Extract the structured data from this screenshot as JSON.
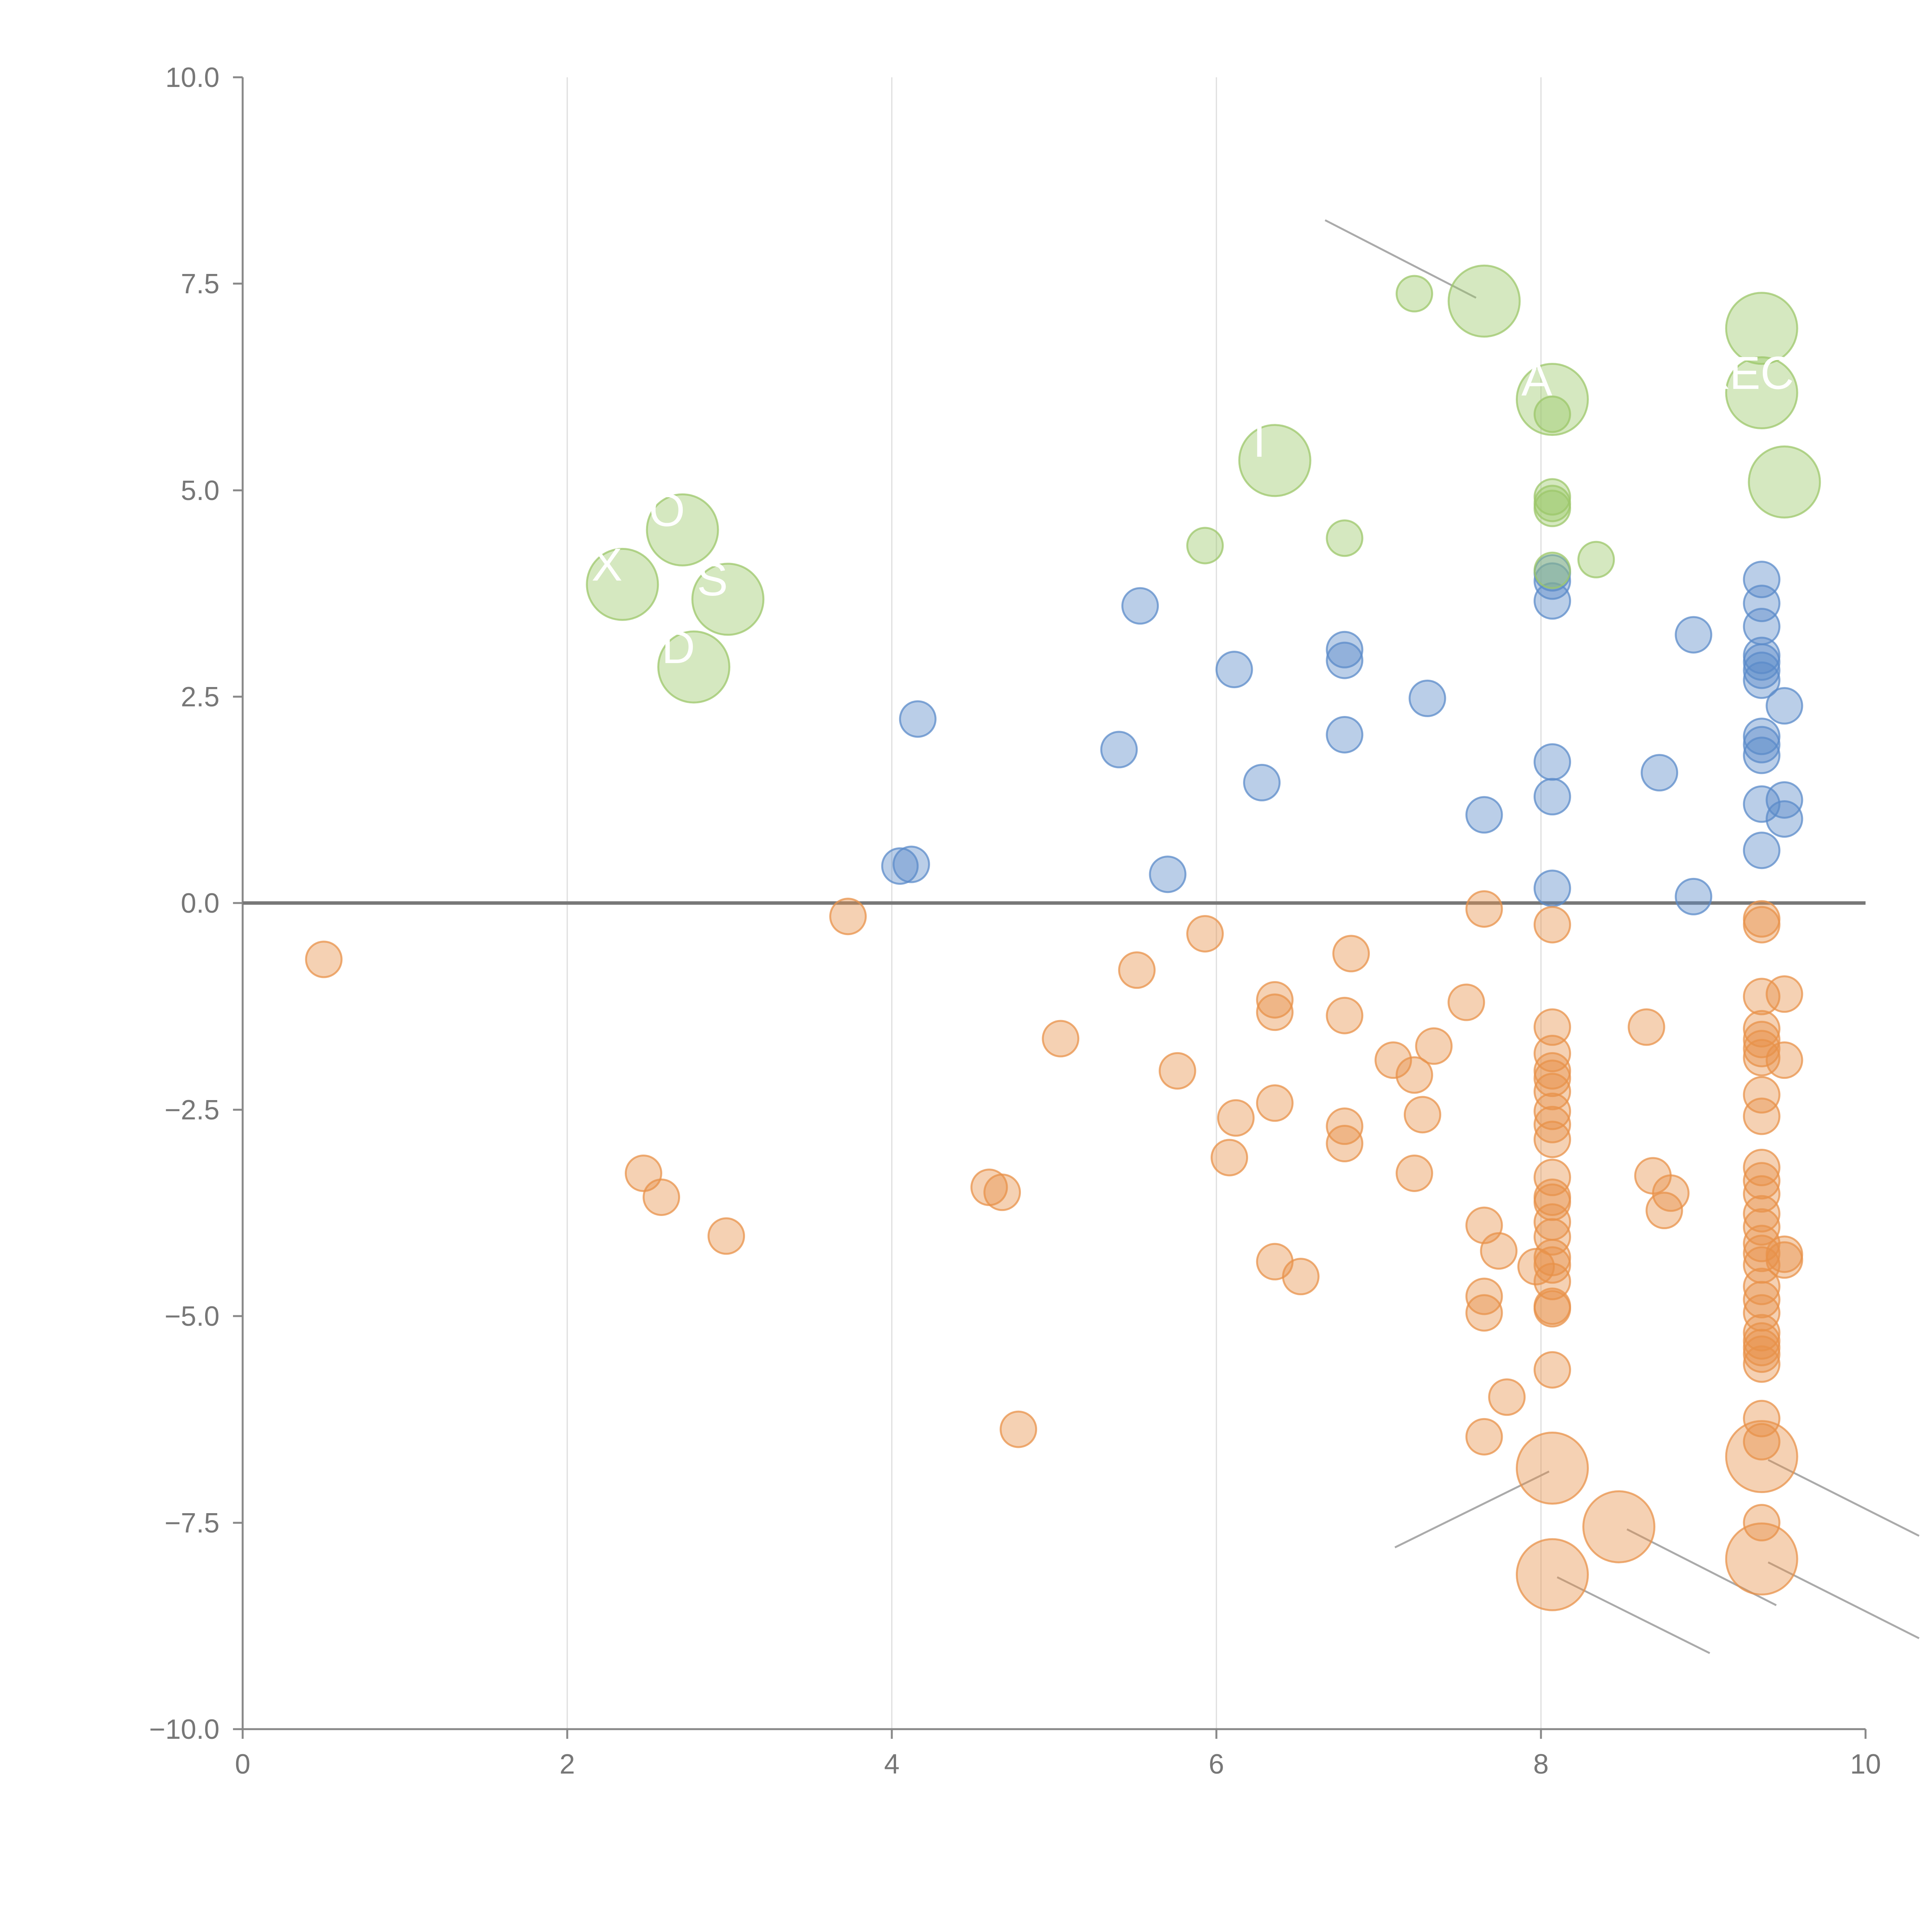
{
  "chart_data": {
    "type": "scatter",
    "title": "",
    "xlabel": "",
    "ylabel": "",
    "xlim": [
      0,
      10
    ],
    "ylim": [
      -10,
      10
    ],
    "x_ticks": [
      "0",
      "2",
      "4",
      "6",
      "8",
      "10"
    ],
    "y_ticks": [
      "10.0",
      "7.5",
      "5.0",
      "2.5",
      "0.0",
      "−2.5",
      "−5.0",
      "−7.5",
      "−10.0"
    ],
    "vertical_gridlines": true,
    "zero_line": true,
    "colors": {
      "blue": "#5b8bc9",
      "orange": "#e8914a",
      "green": "#9cc76a",
      "leader": "#aaaaaa"
    },
    "series": [
      {
        "name": "blue",
        "color": "#5b8bc9",
        "points": [
          [
            4.05,
            0.45
          ],
          [
            4.12,
            0.47
          ],
          [
            4.16,
            2.23
          ],
          [
            5.4,
            1.86
          ],
          [
            5.53,
            3.6
          ],
          [
            5.7,
            0.35
          ],
          [
            6.11,
            2.83
          ],
          [
            6.28,
            1.46
          ],
          [
            6.79,
            3.07
          ],
          [
            6.79,
            2.94
          ],
          [
            6.79,
            2.04
          ],
          [
            7.3,
            2.48
          ],
          [
            7.65,
            1.07
          ],
          [
            8.07,
            4.0
          ],
          [
            8.07,
            3.9
          ],
          [
            8.07,
            3.66
          ],
          [
            8.07,
            1.71
          ],
          [
            8.07,
            1.29
          ],
          [
            8.07,
            0.18
          ],
          [
            8.73,
            1.58
          ],
          [
            8.94,
            3.25
          ],
          [
            8.94,
            0.08
          ],
          [
            9.36,
            3.92
          ],
          [
            9.36,
            3.63
          ],
          [
            9.36,
            3.35
          ],
          [
            9.36,
            3.0
          ],
          [
            9.36,
            2.92
          ],
          [
            9.36,
            2.82
          ],
          [
            9.36,
            2.7
          ],
          [
            9.36,
            2.02
          ],
          [
            9.36,
            1.92
          ],
          [
            9.36,
            1.79
          ],
          [
            9.36,
            1.2
          ],
          [
            9.36,
            0.64
          ],
          [
            9.5,
            2.39
          ],
          [
            9.5,
            1.25
          ],
          [
            9.5,
            1.02
          ]
        ]
      },
      {
        "name": "orange",
        "color": "#e8914a",
        "points": [
          [
            0.5,
            -0.68
          ],
          [
            2.47,
            -3.27
          ],
          [
            2.58,
            -3.56
          ],
          [
            2.98,
            -4.03
          ],
          [
            3.73,
            -0.16
          ],
          [
            4.6,
            -3.44
          ],
          [
            4.68,
            -3.5
          ],
          [
            4.78,
            -6.37
          ],
          [
            5.04,
            -1.64
          ],
          [
            5.51,
            -0.81
          ],
          [
            5.76,
            -2.03
          ],
          [
            5.93,
            -0.37
          ],
          [
            6.08,
            -3.08
          ],
          [
            6.12,
            -2.6
          ],
          [
            6.36,
            -1.17
          ],
          [
            6.36,
            -1.32
          ],
          [
            6.36,
            -2.42
          ],
          [
            6.36,
            -4.34
          ],
          [
            6.52,
            -4.52
          ],
          [
            6.79,
            -1.36
          ],
          [
            6.79,
            -2.7
          ],
          [
            6.79,
            -2.91
          ],
          [
            6.83,
            -0.61
          ],
          [
            7.09,
            -1.9
          ],
          [
            7.22,
            -2.08
          ],
          [
            7.22,
            -3.27
          ],
          [
            7.27,
            -2.56
          ],
          [
            7.34,
            -1.73
          ],
          [
            7.54,
            -1.2
          ],
          [
            7.65,
            -0.07
          ],
          [
            7.65,
            -3.9
          ],
          [
            7.65,
            -4.76
          ],
          [
            7.65,
            -4.96
          ],
          [
            7.65,
            -6.46
          ],
          [
            7.74,
            -4.21
          ],
          [
            7.79,
            -5.98
          ],
          [
            7.97,
            -4.4
          ],
          [
            8.07,
            -0.26
          ],
          [
            8.07,
            -1.5
          ],
          [
            8.07,
            -1.82
          ],
          [
            8.07,
            -2.03
          ],
          [
            8.07,
            -2.12
          ],
          [
            8.07,
            -2.28
          ],
          [
            8.07,
            -2.52
          ],
          [
            8.07,
            -2.68
          ],
          [
            8.07,
            -2.86
          ],
          [
            8.07,
            -3.32
          ],
          [
            8.07,
            -3.56
          ],
          [
            8.07,
            -3.62
          ],
          [
            8.07,
            -3.86
          ],
          [
            8.07,
            -4.04
          ],
          [
            8.07,
            -4.29
          ],
          [
            8.07,
            -4.38
          ],
          [
            8.07,
            -4.58
          ],
          [
            8.07,
            -4.88
          ],
          [
            8.07,
            -4.91
          ],
          [
            8.07,
            -5.65
          ],
          [
            8.65,
            -1.5
          ],
          [
            8.69,
            -3.3
          ],
          [
            8.76,
            -3.72
          ],
          [
            8.8,
            -3.51
          ],
          [
            9.36,
            -0.19
          ],
          [
            9.36,
            -0.26
          ],
          [
            9.36,
            -1.13
          ],
          [
            9.36,
            -1.52
          ],
          [
            9.36,
            -1.65
          ],
          [
            9.36,
            -1.76
          ],
          [
            9.36,
            -1.87
          ],
          [
            9.36,
            -2.32
          ],
          [
            9.36,
            -2.58
          ],
          [
            9.36,
            -3.2
          ],
          [
            9.36,
            -3.36
          ],
          [
            9.36,
            -3.52
          ],
          [
            9.36,
            -3.76
          ],
          [
            9.36,
            -3.92
          ],
          [
            9.36,
            -4.12
          ],
          [
            9.36,
            -4.24
          ],
          [
            9.36,
            -4.38
          ],
          [
            9.36,
            -4.64
          ],
          [
            9.36,
            -4.8
          ],
          [
            9.36,
            -4.96
          ],
          [
            9.36,
            -5.2
          ],
          [
            9.36,
            -5.3
          ],
          [
            9.36,
            -5.38
          ],
          [
            9.36,
            -5.46
          ],
          [
            9.36,
            -5.58
          ],
          [
            9.36,
            -6.24
          ],
          [
            9.36,
            -6.52
          ],
          [
            9.36,
            -7.5
          ],
          [
            9.5,
            -1.1
          ],
          [
            9.5,
            -1.9
          ],
          [
            9.5,
            -4.25
          ],
          [
            9.5,
            -4.32
          ]
        ]
      },
      {
        "name": "green",
        "color": "#9cc76a",
        "points": [
          [
            5.93,
            4.33
          ],
          [
            6.79,
            4.42
          ],
          [
            7.22,
            7.38
          ],
          [
            8.07,
            5.92
          ],
          [
            8.07,
            4.92
          ],
          [
            8.07,
            4.84
          ],
          [
            8.07,
            4.78
          ],
          [
            8.07,
            4.03
          ],
          [
            8.34,
            4.16
          ]
        ]
      }
    ],
    "large_points": [
      {
        "label": "X",
        "x": 2.34,
        "y": 3.86,
        "color": "#9cc76a"
      },
      {
        "label": "O",
        "x": 2.71,
        "y": 4.52,
        "color": "#9cc76a"
      },
      {
        "label": "S",
        "x": 2.99,
        "y": 3.68,
        "color": "#9cc76a"
      },
      {
        "label": "D",
        "x": 2.78,
        "y": 2.86,
        "color": "#9cc76a"
      },
      {
        "label": "I",
        "x": 6.36,
        "y": 5.36,
        "color": "#9cc76a"
      },
      {
        "label": "",
        "x": 7.65,
        "y": 7.29,
        "color": "#9cc76a"
      },
      {
        "label": "A",
        "x": 8.07,
        "y": 6.1,
        "color": "#9cc76a"
      },
      {
        "label": "",
        "x": 9.36,
        "y": 6.96,
        "color": "#9cc76a"
      },
      {
        "label": "XEC",
        "x": 9.36,
        "y": 6.18,
        "color": "#9cc76a"
      },
      {
        "label": "",
        "x": 9.5,
        "y": 5.1,
        "color": "#9cc76a"
      },
      {
        "label": "",
        "x": 8.07,
        "y": -6.84,
        "color": "#e8914a"
      },
      {
        "label": "",
        "x": 8.48,
        "y": -7.55,
        "color": "#e8914a"
      },
      {
        "label": "",
        "x": 8.07,
        "y": -8.13,
        "color": "#e8914a"
      },
      {
        "label": "",
        "x": 9.36,
        "y": -6.7,
        "color": "#e8914a"
      },
      {
        "label": "",
        "x": 9.36,
        "y": -7.94,
        "color": "#e8914a"
      }
    ],
    "leader_lines": [
      {
        "x1": 6.67,
        "y1": 8.27,
        "x2": 7.6,
        "y2": 7.33
      },
      {
        "x1": 7.1,
        "y1": -7.8,
        "x2": 8.05,
        "y2": -6.88
      },
      {
        "x1": 8.53,
        "y1": -7.58,
        "x2": 9.45,
        "y2": -8.5
      },
      {
        "x1": 8.1,
        "y1": -8.16,
        "x2": 9.04,
        "y2": -9.08
      },
      {
        "x1": 9.4,
        "y1": -6.74,
        "x2": 10.33,
        "y2": -7.66
      },
      {
        "x1": 9.4,
        "y1": -7.98,
        "x2": 10.33,
        "y2": -8.9
      }
    ]
  }
}
